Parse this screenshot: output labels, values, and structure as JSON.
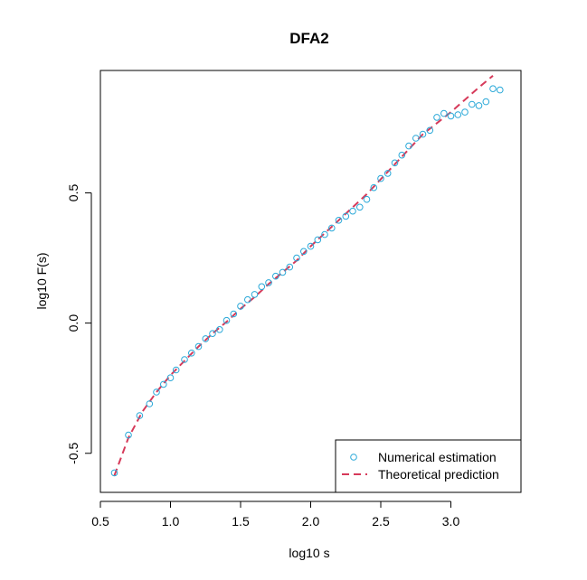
{
  "chart_data": {
    "type": "scatter",
    "title": "DFA2",
    "xlabel": "log10 s",
    "ylabel": "log10 F(s)",
    "xlim": [
      0.5,
      3.5
    ],
    "ylim": [
      -0.65,
      0.97
    ],
    "xticks": [
      0.5,
      1.0,
      1.5,
      2.0,
      2.5,
      3.0
    ],
    "xtick_labels": [
      "0.5",
      "1.0",
      "1.5",
      "2.0",
      "2.5",
      "3.0"
    ],
    "yticks": [
      -0.5,
      0.0,
      0.5
    ],
    "ytick_labels": [
      "-0.5",
      "0.0",
      "0.5"
    ],
    "grid": false,
    "legend_position": "bottom-right",
    "colors": {
      "points": "#29a8d8",
      "line": "#d63a5a"
    },
    "series": [
      {
        "name": "Numerical estimation",
        "kind": "points",
        "x": [
          0.6,
          0.7,
          0.78,
          0.85,
          0.9,
          0.95,
          1.0,
          1.04,
          1.1,
          1.15,
          1.2,
          1.25,
          1.3,
          1.35,
          1.4,
          1.45,
          1.5,
          1.55,
          1.6,
          1.65,
          1.7,
          1.75,
          1.8,
          1.85,
          1.9,
          1.95,
          2.0,
          2.05,
          2.1,
          2.15,
          2.2,
          2.25,
          2.3,
          2.35,
          2.4,
          2.45,
          2.5,
          2.55,
          2.6,
          2.65,
          2.7,
          2.75,
          2.8,
          2.85,
          2.9,
          2.95,
          3.0,
          3.05,
          3.1,
          3.15,
          3.2,
          3.25,
          3.3,
          3.35
        ],
        "y": [
          -0.575,
          -0.43,
          -0.355,
          -0.31,
          -0.265,
          -0.235,
          -0.21,
          -0.18,
          -0.14,
          -0.115,
          -0.09,
          -0.06,
          -0.04,
          -0.025,
          0.01,
          0.035,
          0.065,
          0.09,
          0.11,
          0.14,
          0.155,
          0.18,
          0.195,
          0.215,
          0.25,
          0.275,
          0.295,
          0.32,
          0.34,
          0.365,
          0.395,
          0.41,
          0.43,
          0.445,
          0.475,
          0.52,
          0.555,
          0.575,
          0.615,
          0.645,
          0.68,
          0.71,
          0.725,
          0.74,
          0.79,
          0.805,
          0.795,
          0.8,
          0.81,
          0.84,
          0.835,
          0.85,
          0.9,
          0.895
        ]
      },
      {
        "name": "Theoretical prediction",
        "kind": "dashed-line",
        "x": [
          0.6,
          0.7,
          0.8,
          0.9,
          1.0,
          1.1,
          1.2,
          1.3,
          1.4,
          1.5,
          1.6,
          1.7,
          1.8,
          1.9,
          2.0,
          2.2,
          2.4,
          2.6,
          2.8,
          3.0,
          3.2,
          3.3
        ],
        "y": [
          -0.585,
          -0.44,
          -0.34,
          -0.265,
          -0.2,
          -0.145,
          -0.09,
          -0.04,
          0.005,
          0.055,
          0.1,
          0.15,
          0.195,
          0.24,
          0.295,
          0.395,
          0.495,
          0.61,
          0.725,
          0.81,
          0.905,
          0.95
        ]
      }
    ]
  }
}
